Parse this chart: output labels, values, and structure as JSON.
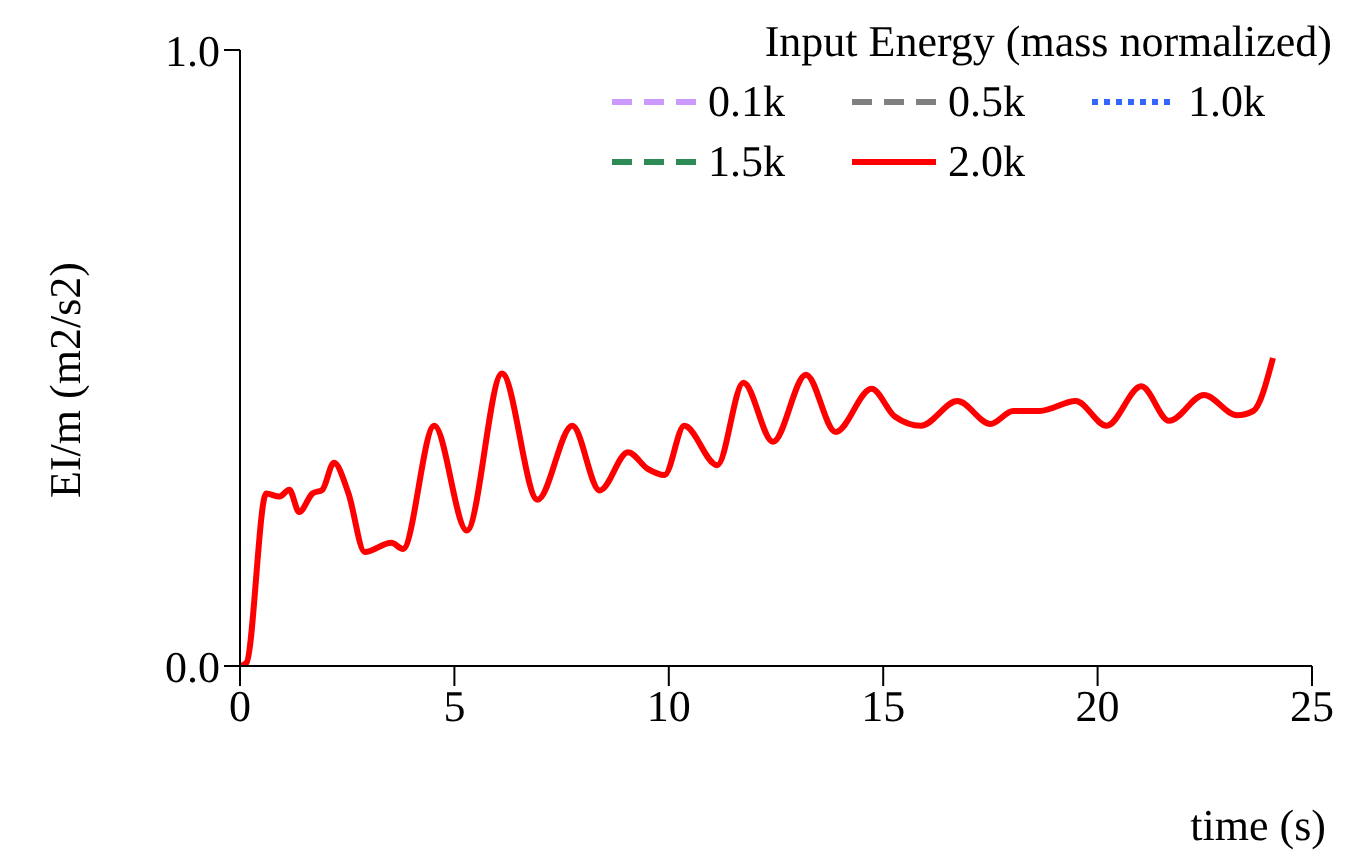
{
  "chart_data": {
    "type": "line",
    "xlabel": "time (s)",
    "ylabel": "EI/m (m2/s2)",
    "legend_title": "Input Energy (mass normalized)",
    "legend": "top right",
    "marker": "none",
    "x": [
      0,
      0.15,
      0.61,
      0.92,
      1.15,
      1.38,
      1.69,
      1.92,
      2.19,
      2.53,
      2.91,
      3.53,
      3.8,
      4.53,
      5.29,
      6.11,
      6.94,
      7.75,
      8.39,
      9.05,
      9.51,
      9.9,
      10.36,
      11.13,
      11.74,
      12.43,
      13.2,
      13.89,
      14.73,
      15.27,
      15.88,
      16.73,
      17.5,
      18.03,
      18.65,
      19.49,
      20.21,
      21.02,
      21.67,
      22.48,
      23.25,
      23.63,
      24.09
    ],
    "xlim": [
      0,
      25
    ],
    "xticks": [
      0,
      5,
      10,
      15,
      20,
      25
    ],
    "ylim": [
      0,
      1
    ],
    "yticks": [
      {
        "value": 0,
        "label": "0.0"
      },
      {
        "value": 1,
        "label": "1.0"
      }
    ],
    "series": [
      {
        "name": "0.1k",
        "color": "#cc99ff",
        "line_style": "dashed",
        "values": [
          null,
          null,
          null,
          null,
          null,
          null,
          null,
          null,
          null,
          null,
          null,
          null,
          null,
          null,
          null,
          null,
          null,
          null,
          null,
          null,
          null,
          null,
          null,
          null,
          null,
          null,
          null,
          null,
          null,
          null,
          null,
          null,
          null,
          null,
          null,
          null,
          null,
          null,
          null,
          null,
          null,
          null,
          null
        ]
      },
      {
        "name": "0.5k",
        "color": "#808080",
        "line_style": "dashed",
        "values": [
          null,
          null,
          null,
          null,
          null,
          null,
          null,
          null,
          null,
          null,
          null,
          null,
          null,
          null,
          null,
          null,
          null,
          null,
          null,
          null,
          null,
          null,
          null,
          null,
          null,
          null,
          null,
          null,
          null,
          null,
          null,
          null,
          null,
          null,
          null,
          null,
          null,
          null,
          null,
          null,
          null,
          null,
          null
        ]
      },
      {
        "name": "1.0k",
        "color": "#3366ff",
        "line_style": "dotted",
        "values": [
          null,
          null,
          null,
          null,
          null,
          null,
          null,
          null,
          null,
          null,
          null,
          null,
          null,
          null,
          null,
          null,
          null,
          null,
          null,
          null,
          null,
          null,
          null,
          null,
          null,
          null,
          null,
          null,
          null,
          null,
          null,
          null,
          null,
          null,
          null,
          null,
          null,
          null,
          null,
          null,
          null,
          null,
          null
        ]
      },
      {
        "name": "1.5k",
        "color": "#2e8b57",
        "line_style": "dashed",
        "values": [
          null,
          null,
          null,
          null,
          null,
          null,
          null,
          null,
          null,
          null,
          null,
          null,
          null,
          null,
          null,
          null,
          null,
          null,
          null,
          null,
          null,
          null,
          null,
          null,
          null,
          null,
          null,
          null,
          null,
          null,
          null,
          null,
          null,
          null,
          null,
          null,
          null,
          null,
          null,
          null,
          null,
          null,
          null
        ]
      },
      {
        "name": "2.0k",
        "color": "#ff0000",
        "line_style": "solid",
        "values": [
          0,
          0.005,
          0.28,
          0.275,
          0.286,
          0.25,
          0.28,
          0.286,
          0.33,
          0.28,
          0.185,
          0.2,
          0.19,
          0.39,
          0.22,
          0.475,
          0.27,
          0.39,
          0.285,
          0.347,
          0.32,
          0.31,
          0.39,
          0.326,
          0.46,
          0.364,
          0.473,
          0.38,
          0.45,
          0.405,
          0.39,
          0.43,
          0.393,
          0.414,
          0.414,
          0.43,
          0.39,
          0.454,
          0.398,
          0.44,
          0.407,
          0.414,
          0.5
        ]
      }
    ]
  }
}
